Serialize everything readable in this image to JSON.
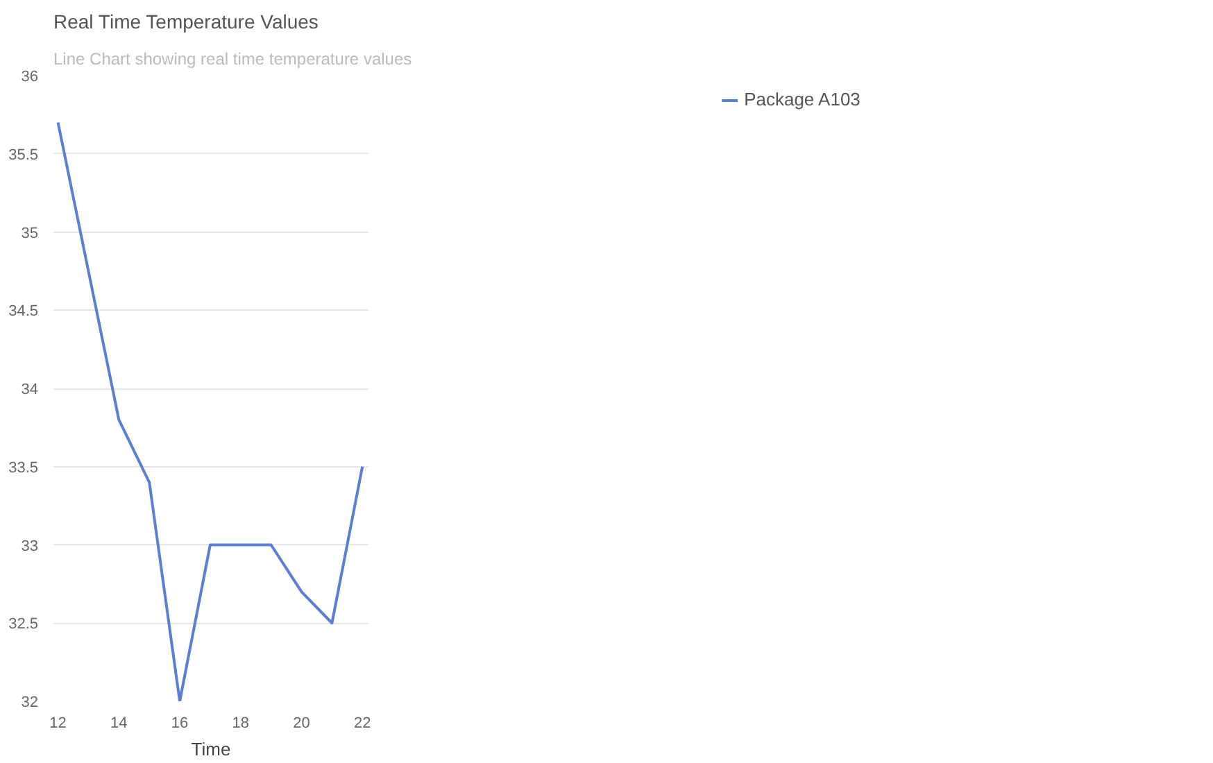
{
  "chart_data": {
    "type": "line",
    "title": "Real Time Temperature Values",
    "subtitle": "Line Chart showing real time temperature values",
    "xlabel": "Time",
    "x": [
      12,
      14,
      15,
      16,
      17,
      19,
      20,
      21,
      22
    ],
    "series": [
      {
        "name": "Package A103",
        "color": "#5a7fd4",
        "values": [
          35.7,
          33.8,
          33.4,
          32,
          33,
          33,
          32.7,
          32.5,
          33.5
        ]
      }
    ],
    "xlim": [
      11.85,
      22.2
    ],
    "xticks": [
      12,
      14,
      16,
      18,
      20,
      22
    ],
    "ylim": [
      32,
      36
    ],
    "yticks": [
      32,
      32.5,
      33,
      33.5,
      34,
      34.5,
      35,
      35.5,
      36
    ],
    "grid": "y",
    "legend": "top right",
    "marker": "none",
    "line_style": "solid"
  }
}
